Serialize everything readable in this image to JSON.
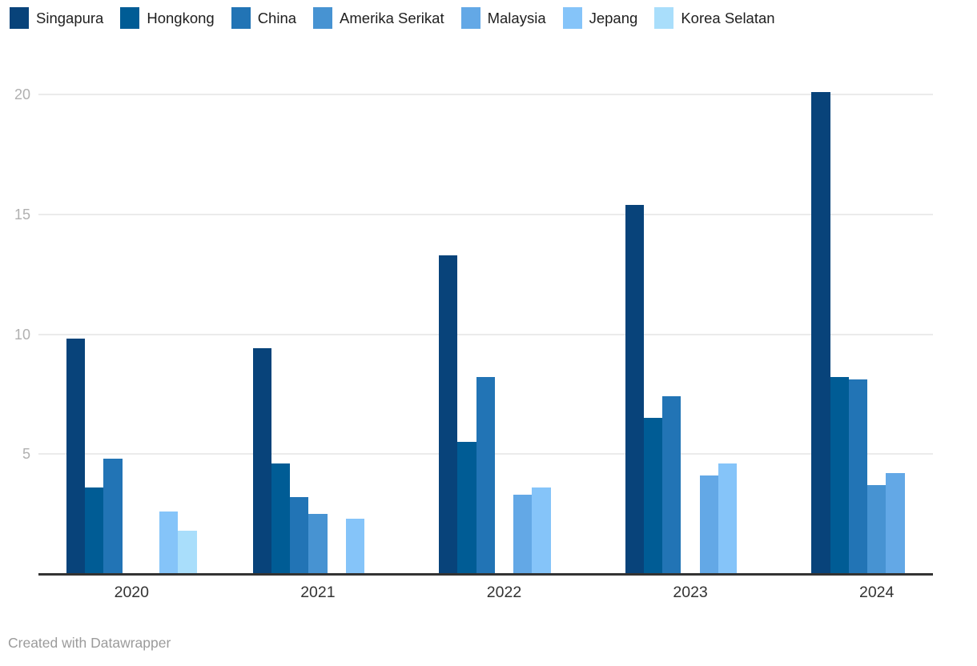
{
  "chart_data": {
    "type": "bar",
    "categories": [
      "2020",
      "2021",
      "2022",
      "2023",
      "2024"
    ],
    "series": [
      {
        "name": "Singapura",
        "color": "#08437a",
        "values": [
          9.8,
          9.4,
          13.3,
          15.4,
          20.1
        ]
      },
      {
        "name": "Hongkong",
        "color": "#005c95",
        "values": [
          3.6,
          4.6,
          5.5,
          6.5,
          8.2
        ]
      },
      {
        "name": "China",
        "color": "#2274b5",
        "values": [
          4.8,
          3.2,
          8.2,
          7.4,
          8.1
        ]
      },
      {
        "name": "Amerika Serikat",
        "color": "#4793d2",
        "values": [
          null,
          2.5,
          null,
          null,
          3.7
        ]
      },
      {
        "name": "Malaysia",
        "color": "#63a8e6",
        "values": [
          null,
          null,
          3.3,
          4.1,
          4.2
        ]
      },
      {
        "name": "Jepang",
        "color": "#85c4f9",
        "values": [
          2.6,
          2.3,
          3.6,
          4.6,
          null
        ]
      },
      {
        "name": "Korea Selatan",
        "color": "#a9defb",
        "values": [
          1.8,
          null,
          null,
          null,
          null
        ]
      }
    ],
    "ylim": [
      0,
      20
    ],
    "yticks": [
      5,
      10,
      15,
      20
    ],
    "grid": "horizontal",
    "legend_position": "top",
    "xlabel": "",
    "ylabel": ""
  },
  "footer": {
    "credit": "Created with Datawrapper"
  },
  "colors": {
    "gridline": "#ebebeb",
    "axis_line": "#333333",
    "tick_label": "#b0b0b0",
    "category_label": "#333333",
    "footer_text": "#9b9b9b",
    "background": "#ffffff"
  }
}
